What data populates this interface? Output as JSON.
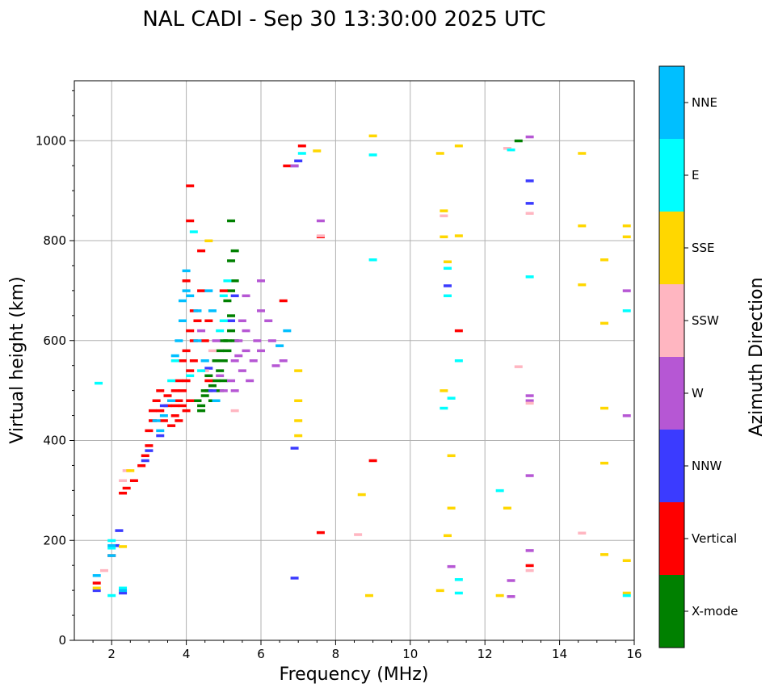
{
  "chart_data": {
    "type": "scatter",
    "title": "NAL CADI - Sep 30 13:30:00 2025 UTC",
    "xlabel": "Frequency (MHz)",
    "ylabel": "Virtual height (km)",
    "xlim": [
      1,
      16
    ],
    "ylim": [
      0,
      1120
    ],
    "xticks": [
      2,
      4,
      6,
      8,
      10,
      12,
      14,
      16
    ],
    "yticks": [
      0,
      200,
      400,
      600,
      800,
      1000
    ],
    "grid": true,
    "colorbar": {
      "title": "Azimuth Direction",
      "categories": [
        {
          "name": "X-mode",
          "color": "#008000"
        },
        {
          "name": "Vertical",
          "color": "#ff0000"
        },
        {
          "name": "NNW",
          "color": "#3b3bff"
        },
        {
          "name": "W",
          "color": "#b657d4"
        },
        {
          "name": "SSW",
          "color": "#ffb6c1"
        },
        {
          "name": "SSE",
          "color": "#ffd700"
        },
        {
          "name": "E",
          "color": "#00ffff"
        },
        {
          "name": "NNE",
          "color": "#00bfff"
        }
      ]
    },
    "series": [
      {
        "name": "X-mode",
        "points": [
          [
            4.3,
            480
          ],
          [
            4.4,
            470
          ],
          [
            4.5,
            490
          ],
          [
            4.6,
            500
          ],
          [
            4.7,
            510
          ],
          [
            4.8,
            520
          ],
          [
            4.9,
            500
          ],
          [
            4.6,
            530
          ],
          [
            4.8,
            560
          ],
          [
            4.9,
            540
          ],
          [
            5.0,
            560
          ],
          [
            5.0,
            520
          ],
          [
            5.1,
            580
          ],
          [
            5.1,
            600
          ],
          [
            5.2,
            620
          ],
          [
            5.2,
            650
          ],
          [
            5.3,
            600
          ],
          [
            5.1,
            680
          ],
          [
            5.2,
            700
          ],
          [
            5.3,
            720
          ],
          [
            5.2,
            760
          ],
          [
            5.3,
            780
          ],
          [
            5.1,
            640
          ],
          [
            5.0,
            600
          ],
          [
            4.9,
            580
          ],
          [
            5.2,
            840
          ],
          [
            4.7,
            480
          ],
          [
            4.4,
            460
          ],
          [
            4.5,
            500
          ],
          [
            12.9,
            1000
          ]
        ]
      },
      {
        "name": "Vertical",
        "points": [
          [
            2.3,
            295
          ],
          [
            2.4,
            305
          ],
          [
            2.6,
            320
          ],
          [
            2.8,
            350
          ],
          [
            2.9,
            370
          ],
          [
            3.0,
            390
          ],
          [
            3.0,
            420
          ],
          [
            3.1,
            440
          ],
          [
            3.1,
            460
          ],
          [
            3.2,
            480
          ],
          [
            3.3,
            500
          ],
          [
            3.3,
            460
          ],
          [
            3.4,
            440
          ],
          [
            3.5,
            470
          ],
          [
            3.5,
            490
          ],
          [
            3.6,
            430
          ],
          [
            3.7,
            450
          ],
          [
            3.7,
            470
          ],
          [
            3.8,
            480
          ],
          [
            3.8,
            440
          ],
          [
            3.9,
            470
          ],
          [
            3.9,
            500
          ],
          [
            4.0,
            460
          ],
          [
            4.0,
            520
          ],
          [
            4.1,
            480
          ],
          [
            4.1,
            540
          ],
          [
            4.0,
            580
          ],
          [
            4.1,
            620
          ],
          [
            4.2,
            600
          ],
          [
            4.3,
            640
          ],
          [
            3.9,
            560
          ],
          [
            3.8,
            520
          ],
          [
            3.7,
            500
          ],
          [
            3.6,
            480
          ],
          [
            4.2,
            560
          ],
          [
            4.2,
            660
          ],
          [
            4.4,
            700
          ],
          [
            4.4,
            780
          ],
          [
            4.1,
            840
          ],
          [
            4.1,
            910
          ],
          [
            4.0,
            720
          ],
          [
            4.6,
            640
          ],
          [
            4.6,
            520
          ],
          [
            4.5,
            600
          ],
          [
            5.0,
            700
          ],
          [
            6.6,
            680
          ],
          [
            6.7,
            950
          ],
          [
            7.1,
            990
          ],
          [
            7.6,
            808
          ],
          [
            7.6,
            216
          ],
          [
            9.0,
            360
          ],
          [
            11.3,
            620
          ],
          [
            13.2,
            150
          ],
          [
            2.0,
            170
          ],
          [
            1.6,
            115
          ]
        ]
      },
      {
        "name": "NNW",
        "points": [
          [
            2.1,
            190
          ],
          [
            2.2,
            220
          ],
          [
            3.3,
            410
          ],
          [
            3.4,
            470
          ],
          [
            3.0,
            380
          ],
          [
            2.9,
            360
          ],
          [
            4.6,
            545
          ],
          [
            4.7,
            500
          ],
          [
            5.2,
            640
          ],
          [
            5.3,
            690
          ],
          [
            6.9,
            950
          ],
          [
            7.0,
            960
          ],
          [
            6.9,
            385
          ],
          [
            6.9,
            125
          ],
          [
            11.0,
            710
          ],
          [
            13.2,
            920
          ],
          [
            13.2,
            875
          ],
          [
            2.3,
            95
          ],
          [
            1.6,
            100
          ]
        ]
      },
      {
        "name": "W",
        "points": [
          [
            4.8,
            600
          ],
          [
            4.9,
            530
          ],
          [
            5.0,
            500
          ],
          [
            5.2,
            520
          ],
          [
            5.3,
            560
          ],
          [
            5.4,
            600
          ],
          [
            5.5,
            540
          ],
          [
            5.6,
            580
          ],
          [
            5.5,
            640
          ],
          [
            5.6,
            690
          ],
          [
            5.7,
            520
          ],
          [
            5.8,
            560
          ],
          [
            5.6,
            620
          ],
          [
            5.4,
            570
          ],
          [
            5.3,
            500
          ],
          [
            6.0,
            580
          ],
          [
            6.0,
            660
          ],
          [
            6.0,
            720
          ],
          [
            6.3,
            600
          ],
          [
            6.4,
            550
          ],
          [
            6.6,
            560
          ],
          [
            6.2,
            640
          ],
          [
            5.9,
            600
          ],
          [
            6.9,
            950
          ],
          [
            7.6,
            840
          ],
          [
            12.7,
            120
          ],
          [
            12.7,
            88
          ],
          [
            13.2,
            490
          ],
          [
            13.2,
            480
          ],
          [
            13.2,
            180
          ],
          [
            13.2,
            1008
          ],
          [
            13.2,
            330
          ],
          [
            15.8,
            700
          ],
          [
            15.8,
            450
          ],
          [
            11.1,
            148
          ],
          [
            4.4,
            620
          ],
          [
            4.5,
            560
          ]
        ]
      },
      {
        "name": "SSW",
        "points": [
          [
            2.3,
            320
          ],
          [
            2.4,
            340
          ],
          [
            1.8,
            140
          ],
          [
            4.5,
            540
          ],
          [
            4.7,
            580
          ],
          [
            5.3,
            460
          ],
          [
            8.6,
            212
          ],
          [
            10.9,
            850
          ],
          [
            12.9,
            548
          ],
          [
            13.2,
            855
          ],
          [
            13.2,
            475
          ],
          [
            13.2,
            140
          ],
          [
            14.6,
            215
          ],
          [
            12.6,
            985
          ],
          [
            7.6,
            810
          ]
        ]
      },
      {
        "name": "SSE",
        "points": [
          [
            2.3,
            188
          ],
          [
            2.5,
            340
          ],
          [
            4.6,
            800
          ],
          [
            7.0,
            540
          ],
          [
            7.0,
            480
          ],
          [
            7.0,
            440
          ],
          [
            7.0,
            410
          ],
          [
            7.5,
            980
          ],
          [
            9.0,
            1010
          ],
          [
            8.7,
            292
          ],
          [
            8.9,
            90
          ],
          [
            10.8,
            975
          ],
          [
            10.9,
            860
          ],
          [
            10.9,
            808
          ],
          [
            10.9,
            500
          ],
          [
            10.8,
            100
          ],
          [
            11.0,
            210
          ],
          [
            11.0,
            758
          ],
          [
            11.1,
            370
          ],
          [
            11.1,
            265
          ],
          [
            11.3,
            990
          ],
          [
            11.3,
            810
          ],
          [
            12.4,
            90
          ],
          [
            12.6,
            265
          ],
          [
            14.6,
            975
          ],
          [
            14.6,
            830
          ],
          [
            14.6,
            712
          ],
          [
            15.2,
            762
          ],
          [
            15.2,
            635
          ],
          [
            15.2,
            465
          ],
          [
            15.2,
            355
          ],
          [
            15.2,
            172
          ],
          [
            15.8,
            830
          ],
          [
            15.8,
            808
          ],
          [
            15.8,
            160
          ],
          [
            15.8,
            95
          ],
          [
            1.6,
            105
          ]
        ]
      },
      {
        "name": "E",
        "points": [
          [
            2.0,
            185
          ],
          [
            2.0,
            200
          ],
          [
            2.3,
            105
          ],
          [
            3.6,
            520
          ],
          [
            3.7,
            560
          ],
          [
            4.1,
            530
          ],
          [
            4.4,
            540
          ],
          [
            4.9,
            620
          ],
          [
            5.0,
            640
          ],
          [
            5.1,
            720
          ],
          [
            5.0,
            690
          ],
          [
            9.0,
            972
          ],
          [
            9.0,
            762
          ],
          [
            10.9,
            465
          ],
          [
            11.0,
            745
          ],
          [
            11.0,
            690
          ],
          [
            11.1,
            485
          ],
          [
            11.3,
            560
          ],
          [
            11.3,
            122
          ],
          [
            11.3,
            95
          ],
          [
            12.4,
            300
          ],
          [
            12.7,
            982
          ],
          [
            13.2,
            728
          ],
          [
            15.8,
            660
          ],
          [
            15.8,
            90
          ],
          [
            1.65,
            515
          ],
          [
            2.0,
            90
          ],
          [
            4.2,
            818
          ],
          [
            7.1,
            975
          ]
        ]
      },
      {
        "name": "NNE",
        "points": [
          [
            2.0,
            170
          ],
          [
            2.0,
            190
          ],
          [
            1.6,
            130
          ],
          [
            3.4,
            450
          ],
          [
            3.6,
            480
          ],
          [
            3.7,
            570
          ],
          [
            3.9,
            680
          ],
          [
            4.0,
            700
          ],
          [
            4.0,
            740
          ],
          [
            4.1,
            690
          ],
          [
            3.8,
            600
          ],
          [
            3.9,
            640
          ],
          [
            4.3,
            600
          ],
          [
            4.5,
            560
          ],
          [
            4.8,
            480
          ],
          [
            3.2,
            440
          ],
          [
            3.3,
            420
          ],
          [
            2.3,
            100
          ],
          [
            6.7,
            620
          ],
          [
            6.5,
            590
          ],
          [
            4.7,
            660
          ],
          [
            4.3,
            660
          ],
          [
            4.6,
            700
          ]
        ]
      }
    ]
  }
}
